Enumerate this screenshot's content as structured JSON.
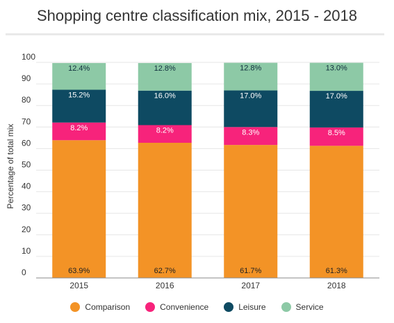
{
  "chart_data": {
    "type": "bar",
    "stacked": true,
    "title": "Shopping centre classification mix, 2015 - 2018",
    "ylabel": "Percentage of total mix",
    "xlabel": "",
    "ylim": [
      0,
      100
    ],
    "yticks": [
      "0",
      "10",
      "20",
      "30",
      "40",
      "50",
      "60",
      "70",
      "80",
      "90",
      "100"
    ],
    "categories": [
      "2015",
      "2016",
      "2017",
      "2018"
    ],
    "grid": true,
    "legend_position": "bottom",
    "series": [
      {
        "name": "Comparison",
        "color": "#f39326",
        "values": [
          63.9,
          62.7,
          61.7,
          61.3
        ],
        "labels": [
          "63.9%",
          "62.7%",
          "61.7%",
          "61.3%"
        ]
      },
      {
        "name": "Convenience",
        "color": "#f7237b",
        "values": [
          8.2,
          8.2,
          8.3,
          8.5
        ],
        "labels": [
          "8.2%",
          "8.2%",
          "8.3%",
          "8.5%"
        ]
      },
      {
        "name": "Leisure",
        "color": "#0e4a62",
        "values": [
          15.2,
          16.0,
          17.0,
          17.0
        ],
        "labels": [
          "15.2%",
          "16.0%",
          "17.0%",
          "17.0%"
        ]
      },
      {
        "name": "Service",
        "color": "#8dc9a6",
        "values": [
          12.4,
          12.8,
          12.8,
          13.0
        ],
        "labels": [
          "12.4%",
          "12.8%",
          "12.8%",
          "13.0%"
        ]
      }
    ]
  }
}
